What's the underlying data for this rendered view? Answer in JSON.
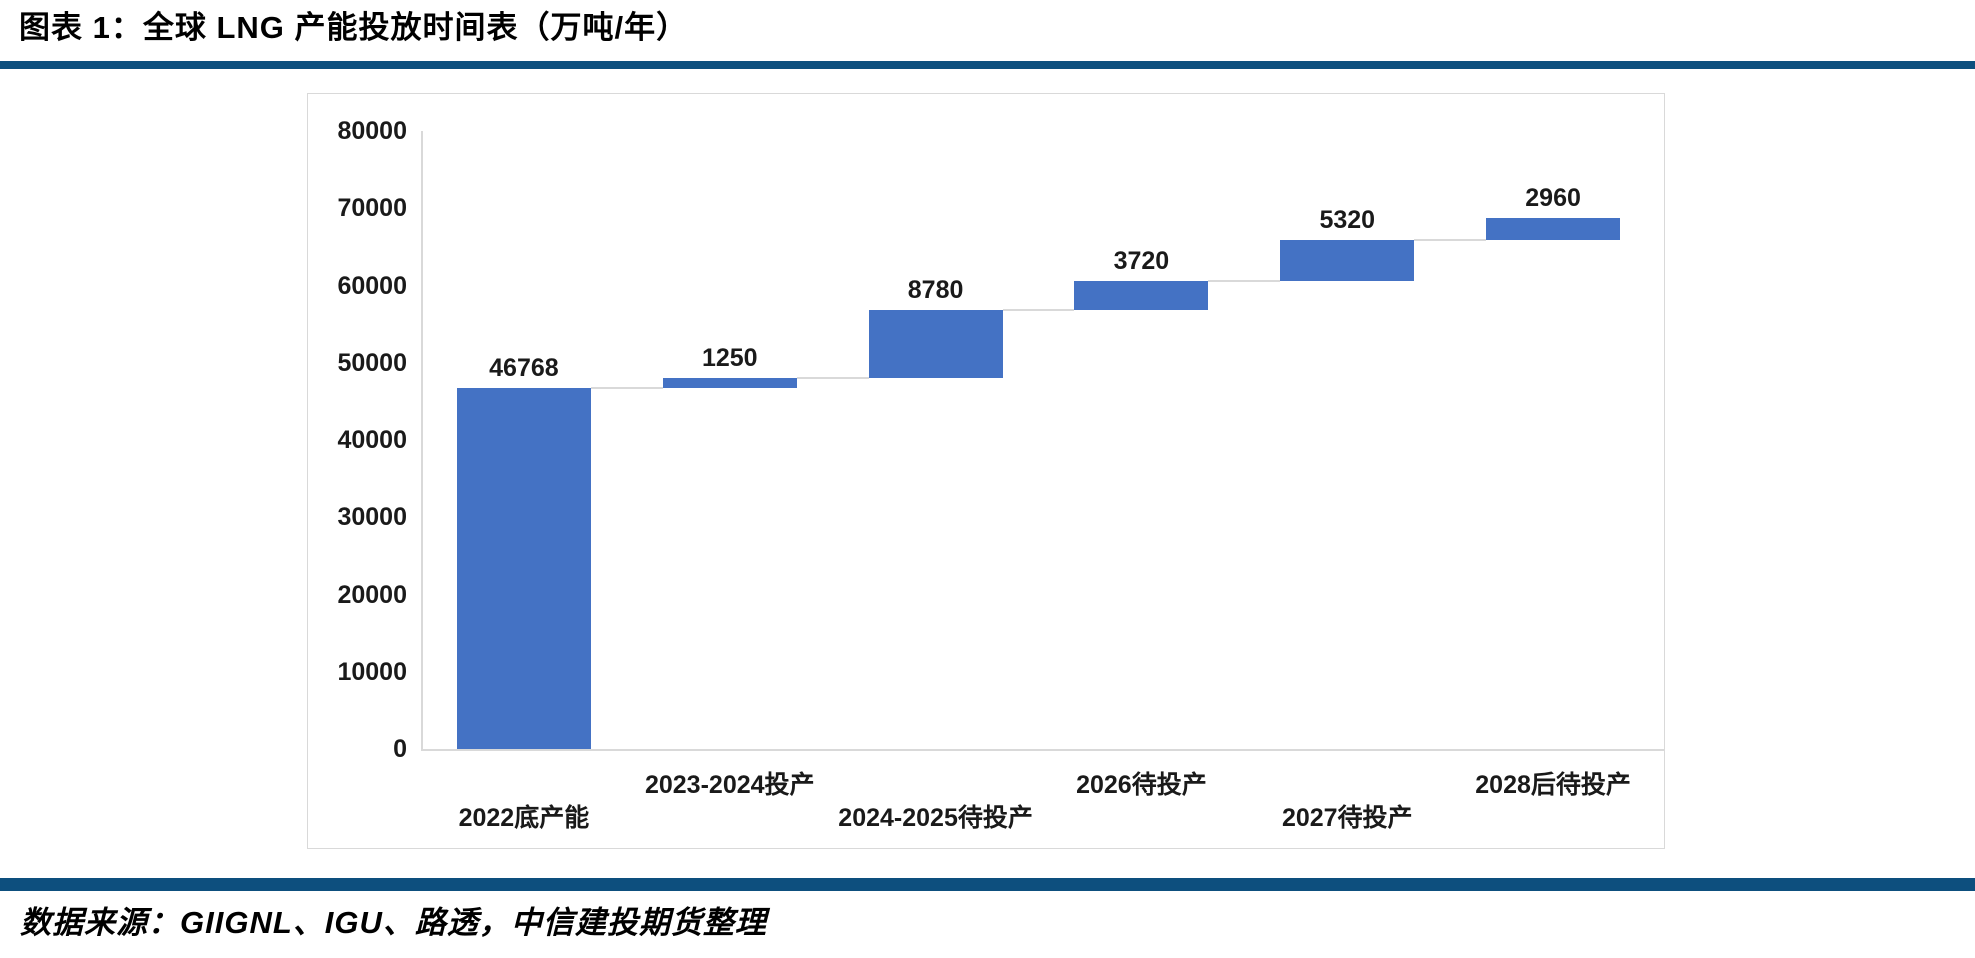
{
  "header": {
    "title": "图表 1：全球 LNG 产能投放时间表（万吨/年）"
  },
  "footer": {
    "source": "数据来源：GIIGNL、IGU、路透，中信建投期货整理"
  },
  "colors": {
    "bar": "#4472C4",
    "rule": "#0d4f7e",
    "axis": "#d9d9d9",
    "text": "#1a1a1a"
  },
  "chart_data": {
    "type": "bar",
    "subtype": "waterfall",
    "title": "全球 LNG 产能投放时间表（万吨/年）",
    "categories": [
      "2022底产能",
      "2023-2024投产",
      "2024-2025待投产",
      "2026待投产",
      "2027待投产",
      "2028后待投产"
    ],
    "values": [
      46768,
      1250,
      8780,
      3720,
      5320,
      2960
    ],
    "cumulative": [
      46768,
      48018,
      56798,
      60518,
      65838,
      68798
    ],
    "data_labels": [
      "46768",
      "1250",
      "8780",
      "3720",
      "5320",
      "2960"
    ],
    "xlabel": "",
    "ylabel": "",
    "ylim": [
      0,
      80000
    ],
    "ytick_step": 10000,
    "yticks": [
      0,
      10000,
      20000,
      30000,
      40000,
      50000,
      60000,
      70000,
      80000
    ],
    "grid": false,
    "legend": false,
    "x_label_stagger": "even-indices-low-row"
  }
}
